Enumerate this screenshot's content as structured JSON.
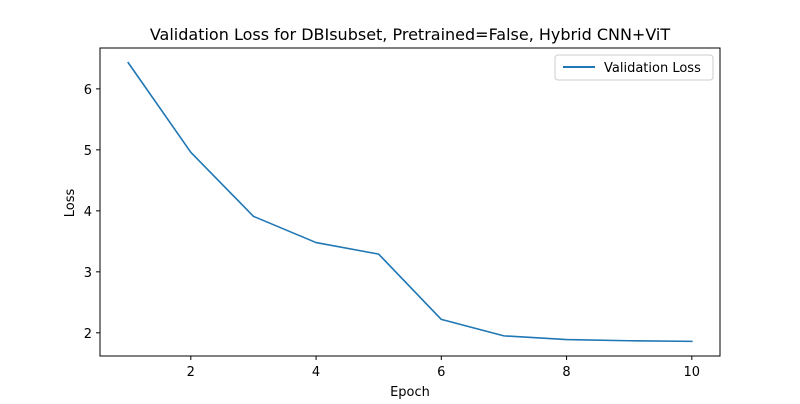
{
  "chart_data": {
    "type": "line",
    "title": "Validation Loss for DBIsubset, Pretrained=False, Hybrid CNN+ViT",
    "xlabel": "Epoch",
    "ylabel": "Loss",
    "x": [
      1,
      2,
      3,
      4,
      5,
      6,
      7,
      8,
      9,
      10
    ],
    "series": [
      {
        "name": "Validation Loss",
        "color": "#1f77b4",
        "values": [
          6.43,
          4.96,
          3.91,
          3.48,
          3.29,
          2.22,
          1.95,
          1.89,
          1.87,
          1.86
        ]
      }
    ],
    "xlim": [
      0.55,
      10.45
    ],
    "ylim": [
      1.62,
      6.67
    ],
    "xticks": [
      2,
      4,
      6,
      8,
      10
    ],
    "yticks": [
      2,
      3,
      4,
      5,
      6
    ],
    "grid": false,
    "legend_position": "top-right"
  }
}
